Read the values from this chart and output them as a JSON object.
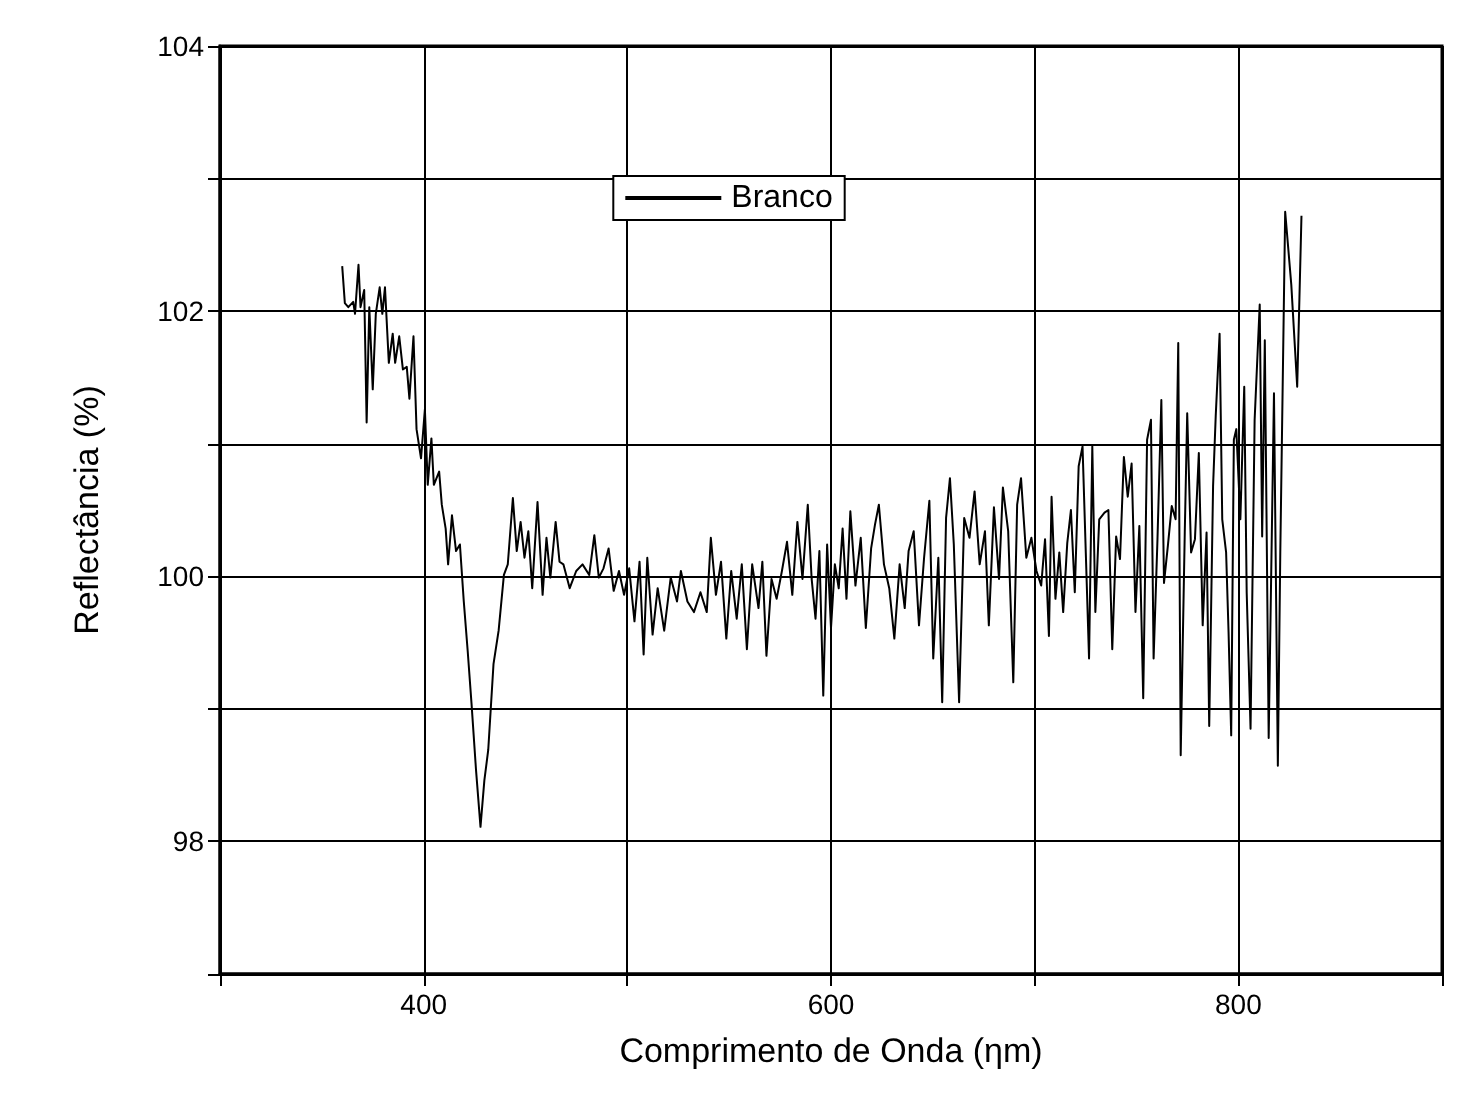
{
  "chart_data": {
    "type": "line",
    "xlabel": "Comprimento de Onda (ηm)",
    "ylabel": "Reflectância (%)",
    "xlim": [
      300,
      900
    ],
    "xticks": [
      {
        "value": 300,
        "label": null
      },
      400,
      {
        "value": 500,
        "label": null
      },
      600,
      {
        "value": 700,
        "label": null
      },
      800,
      {
        "value": 900,
        "label": null
      }
    ],
    "ylim": [
      97,
      104
    ],
    "yticks": [
      {
        "value": 97,
        "label": null
      },
      98,
      {
        "value": 99,
        "label": null
      },
      100,
      {
        "value": 101,
        "label": null
      },
      102,
      {
        "value": 103,
        "label": null
      },
      104
    ],
    "grid": true,
    "legend": "top",
    "marker": "none",
    "line_style": "solid",
    "series": [
      {
        "name": "Branco",
        "color": "#000000",
        "x": [
          360,
          361.3,
          363,
          365.4,
          366.3,
          368,
          369,
          370.8,
          372,
          373.3,
          375,
          376.5,
          378.4,
          379.7,
          381,
          382.9,
          384.8,
          386,
          388,
          389.8,
          391.7,
          393,
          395,
          396.5,
          398.7,
          400.6,
          402,
          403.8,
          405,
          407.6,
          408.9,
          410.8,
          412,
          413.9,
          415.9,
          417.8,
          419.7,
          421.6,
          423.5,
          425.7,
          427.9,
          429.8,
          431.7,
          434.3,
          436.8,
          439.4,
          441.3,
          443.8,
          445.7,
          447.6,
          449.5,
          451.4,
          453.3,
          455.9,
          458.4,
          460.3,
          462.2,
          464.8,
          466.7,
          468.6,
          471.7,
          474.9,
          478,
          481.3,
          483.8,
          486,
          488.3,
          490.8,
          493.3,
          495.9,
          498.4,
          500.9,
          503.5,
          506,
          508,
          509.8,
          512.4,
          514.9,
          518.1,
          521.3,
          524.4,
          526.3,
          529.5,
          532.7,
          535.9,
          539,
          541,
          543.5,
          546,
          548.6,
          551,
          553.7,
          556.2,
          558.7,
          561.3,
          564.4,
          566.3,
          568.3,
          570.8,
          573.3,
          575.9,
          578.4,
          581,
          583.5,
          586,
          588.6,
          590.5,
          592.4,
          594.3,
          596.2,
          598.1,
          600,
          601.9,
          603.8,
          605.7,
          607.6,
          609.5,
          612,
          614.6,
          617.1,
          619.7,
          621.6,
          623.5,
          626,
          628.6,
          631.1,
          633.7,
          636.2,
          638.1,
          640.6,
          643.2,
          645.7,
          648.3,
          650.2,
          652.7,
          654.6,
          656.5,
          658.4,
          660.3,
          662.9,
          665.4,
          668,
          670.5,
          673,
          675.6,
          677.5,
          680,
          682.5,
          684.4,
          687,
          689.5,
          691.4,
          693.3,
          695.9,
          698.4,
          700.9,
          703.2,
          705.1,
          707,
          708.3,
          710.2,
          712.1,
          714,
          716,
          717.8,
          719.7,
          721.6,
          723.5,
          725.1,
          726.7,
          728.3,
          729.8,
          731.7,
          734.3,
          736.2,
          738.1,
          740,
          741.9,
          743.8,
          745.7,
          747.6,
          749.5,
          751.4,
          753.3,
          755.2,
          757.1,
          758.4,
          760.3,
          762.2,
          763.5,
          765.4,
          767.3,
          769.2,
          770.5,
          771.7,
          773.7,
          774.9,
          776.8,
          778.7,
          780.6,
          782.5,
          784.4,
          785.7,
          787.6,
          788.9,
          790.8,
          792.1,
          794,
          795.2,
          796.5,
          797.8,
          799,
          801,
          802.9,
          804.1,
          806,
          808,
          810.5,
          811.7,
          813,
          814.9,
          817.5,
          819.4,
          820.6,
          823,
          826,
          828.9,
          830,
          831
        ],
        "values": [
          102.34,
          102.06,
          102.03,
          102.07,
          101.98,
          102.35,
          102.03,
          102.16,
          101.16,
          102.03,
          101.41,
          101.98,
          102.18,
          101.98,
          102.18,
          101.61,
          101.83,
          101.61,
          101.81,
          101.56,
          101.58,
          101.34,
          101.81,
          101.11,
          100.89,
          101.26,
          100.69,
          101.04,
          100.69,
          100.79,
          100.54,
          100.36,
          100.09,
          100.46,
          100.19,
          100.24,
          99.81,
          99.44,
          99.04,
          98.54,
          98.11,
          98.46,
          98.69,
          99.34,
          99.59,
          100.01,
          100.09,
          100.59,
          100.19,
          100.41,
          100.14,
          100.34,
          99.91,
          100.56,
          99.86,
          100.29,
          99.99,
          100.41,
          100.11,
          100.09,
          99.91,
          100.04,
          100.09,
          100.01,
          100.31,
          99.99,
          100.06,
          100.21,
          99.89,
          100.04,
          99.86,
          100.06,
          99.66,
          100.11,
          99.41,
          100.14,
          99.56,
          99.91,
          99.59,
          99.99,
          99.81,
          100.04,
          99.81,
          99.73,
          99.88,
          99.73,
          100.29,
          99.86,
          100.11,
          99.53,
          100.04,
          99.68,
          100.09,
          99.45,
          100.09,
          99.76,
          100.11,
          99.4,
          99.98,
          99.83,
          100.04,
          100.26,
          99.86,
          100.41,
          99.98,
          100.54,
          99.98,
          99.68,
          100.19,
          99.1,
          100.24,
          99.61,
          100.09,
          99.91,
          100.36,
          99.83,
          100.49,
          99.93,
          100.29,
          99.61,
          100.21,
          100.39,
          100.54,
          100.09,
          99.91,
          99.53,
          100.09,
          99.76,
          100.19,
          100.34,
          99.63,
          100.14,
          100.57,
          99.38,
          100.14,
          99.05,
          100.44,
          100.74,
          100.24,
          99.05,
          100.44,
          100.29,
          100.64,
          100.09,
          100.34,
          99.63,
          100.52,
          99.98,
          100.67,
          100.34,
          99.2,
          100.54,
          100.74,
          100.14,
          100.29,
          100.04,
          99.93,
          100.28,
          99.55,
          100.6,
          99.83,
          100.18,
          99.73,
          100.25,
          100.5,
          99.88,
          100.83,
          100.98,
          100.18,
          99.38,
          100.98,
          99.73,
          100.43,
          100.48,
          100.5,
          99.45,
          100.3,
          100.13,
          100.9,
          100.6,
          100.85,
          99.73,
          100.38,
          99.08,
          101.03,
          101.18,
          99.38,
          100.28,
          101.33,
          99.95,
          100.23,
          100.53,
          100.43,
          101.76,
          98.65,
          100.33,
          101.23,
          100.18,
          100.28,
          100.93,
          99.63,
          100.33,
          98.87,
          100.68,
          101.21,
          101.83,
          100.43,
          100.18,
          99.58,
          98.8,
          101.03,
          101.11,
          100.43,
          101.43,
          99.88,
          98.85,
          101.18,
          102.05,
          100.3,
          101.78,
          98.78,
          101.38,
          98.57,
          100.18,
          102.75,
          102.2,
          101.43,
          102.1,
          102.72
        ]
      }
    ]
  }
}
